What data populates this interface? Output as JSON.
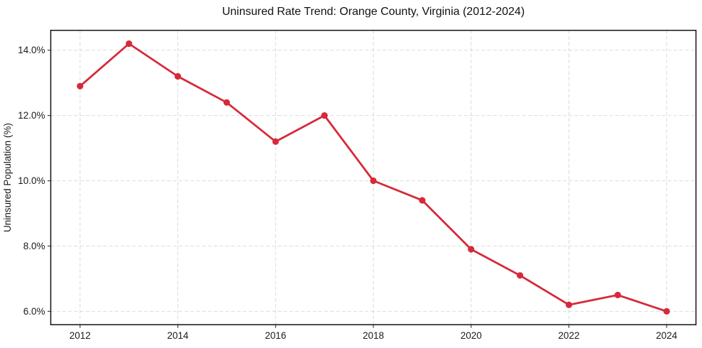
{
  "page": {
    "background": "#ffffff"
  },
  "chart_data": {
    "type": "line",
    "title": "Uninsured Rate Trend: Orange County, Virginia (2012-2024)",
    "xlabel": "",
    "ylabel": "Uninsured Population (%)",
    "x": [
      2012,
      2013,
      2014,
      2015,
      2016,
      2017,
      2018,
      2019,
      2020,
      2021,
      2022,
      2023,
      2024
    ],
    "series": [
      {
        "name": "Uninsured Population (%)",
        "values": [
          12.9,
          14.2,
          13.2,
          12.4,
          11.2,
          12.0,
          10.0,
          9.4,
          7.9,
          7.1,
          6.2,
          6.5,
          6.0
        ]
      }
    ],
    "xlim": [
      2011.4,
      2024.6
    ],
    "ylim": [
      5.59,
      14.61
    ],
    "xticks": {
      "values": [
        2012,
        2014,
        2016,
        2018,
        2020,
        2022,
        2024
      ],
      "labels": [
        "2012",
        "2014",
        "2016",
        "2018",
        "2020",
        "2022",
        "2024"
      ]
    },
    "yticks": {
      "values": [
        6,
        8,
        10,
        12,
        14
      ],
      "labels": [
        "6.0%",
        "8.0%",
        "10.0%",
        "12.0%",
        "14.0%"
      ]
    },
    "grid": {
      "show": true,
      "style": "dashed",
      "color": "#cfcfcf"
    },
    "legend": "none",
    "style": {
      "line_color": "#d62a3a",
      "marker": "circle",
      "marker_color": "#d62a3a",
      "border_color": "#111111",
      "plot_background": "#ffffff"
    }
  }
}
